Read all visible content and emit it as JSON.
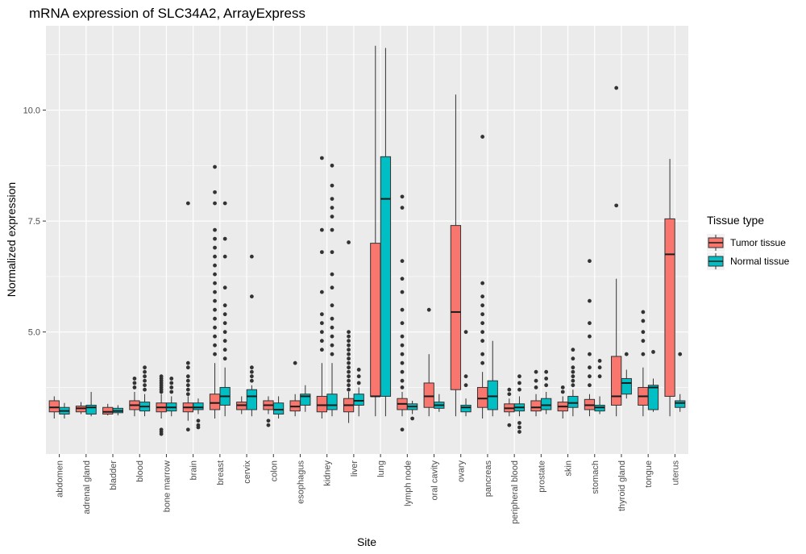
{
  "chart_data": {
    "type": "boxplot",
    "title": "mRNA expression of SLC34A2, ArrayExpress",
    "xlabel": "Site",
    "ylabel": "Normalized expression",
    "ylim": [
      2.25,
      11.9
    ],
    "yticks": [
      5.0,
      7.5,
      10.0
    ],
    "ytick_labels": [
      "5.0",
      "7.5",
      "10.0"
    ],
    "grid": true,
    "legend": {
      "title": "Tissue type",
      "placement": "right",
      "entries": [
        {
          "name": "Tumor tissue",
          "color": "#F8766D"
        },
        {
          "name": "Normal tissue",
          "color": "#00BFC4"
        }
      ]
    },
    "categories": [
      "abdomen",
      "adrenal gland",
      "bladder",
      "blood",
      "bone marrow",
      "brain",
      "breast",
      "cervix",
      "colon",
      "esophagus",
      "kidney",
      "liver",
      "lung",
      "lymph node",
      "oral cavity",
      "ovary",
      "pancreas",
      "peripheral blood",
      "prostate",
      "skin",
      "stomach",
      "thyroid gland",
      "tongue",
      "uterus"
    ],
    "series": [
      {
        "name": "Tumor tissue",
        "color": "#F8766D",
        "boxes": [
          {
            "min": 3.05,
            "q1": 3.2,
            "median": 3.3,
            "q3": 3.45,
            "max": 3.55,
            "outliers": []
          },
          {
            "min": 3.15,
            "q1": 3.2,
            "median": 3.28,
            "q3": 3.33,
            "max": 3.42,
            "outliers": []
          },
          {
            "min": 3.12,
            "q1": 3.15,
            "median": 3.2,
            "q3": 3.3,
            "max": 3.38,
            "outliers": []
          },
          {
            "min": 3.1,
            "q1": 3.25,
            "median": 3.35,
            "q3": 3.45,
            "max": 3.65,
            "outliers": [
              3.75,
              3.85,
              3.95
            ]
          },
          {
            "min": 3.05,
            "q1": 3.2,
            "median": 3.3,
            "q3": 3.4,
            "max": 3.6,
            "outliers": [
              2.7,
              2.75,
              2.8,
              3.65,
              3.7,
              3.75,
              3.8,
              3.85,
              3.9,
              3.95,
              4.0
            ]
          },
          {
            "min": 3.0,
            "q1": 3.2,
            "median": 3.3,
            "q3": 3.4,
            "max": 3.55,
            "outliers": [
              2.8,
              3.6,
              3.7,
              3.8,
              3.9,
              4.0,
              4.2,
              4.3,
              7.9
            ]
          },
          {
            "min": 3.05,
            "q1": 3.25,
            "median": 3.4,
            "q3": 3.6,
            "max": 4.3,
            "outliers": [
              4.5,
              4.7,
              4.9,
              5.1,
              5.3,
              5.5,
              5.7,
              5.9,
              6.1,
              6.3,
              6.5,
              6.7,
              6.9,
              7.1,
              7.3,
              7.9,
              8.15,
              8.72
            ]
          },
          {
            "min": 3.15,
            "q1": 3.25,
            "median": 3.35,
            "q3": 3.42,
            "max": 3.55,
            "outliers": []
          },
          {
            "min": 3.15,
            "q1": 3.25,
            "median": 3.35,
            "q3": 3.45,
            "max": 3.55,
            "outliers": [
              2.9,
              3.0
            ]
          },
          {
            "min": 3.1,
            "q1": 3.22,
            "median": 3.32,
            "q3": 3.45,
            "max": 3.6,
            "outliers": [
              4.3
            ]
          },
          {
            "min": 3.05,
            "q1": 3.2,
            "median": 3.35,
            "q3": 3.55,
            "max": 4.3,
            "outliers": [
              4.6,
              4.8,
              5.0,
              5.2,
              5.4,
              5.9,
              6.8,
              7.3,
              8.92
            ]
          },
          {
            "min": 2.95,
            "q1": 3.2,
            "median": 3.35,
            "q3": 3.5,
            "max": 3.65,
            "outliers": [
              3.7,
              3.8,
              3.9,
              4.0,
              4.1,
              4.2,
              4.3,
              4.4,
              4.5,
              4.6,
              4.7,
              4.8,
              4.9,
              5.0,
              7.02
            ]
          },
          {
            "min": 3.1,
            "q1": 3.55,
            "median": 3.55,
            "q3": 7.0,
            "max": 11.45,
            "outliers": []
          },
          {
            "min": 3.1,
            "q1": 3.25,
            "median": 3.38,
            "q3": 3.5,
            "max": 3.65,
            "outliers": [
              2.8,
              3.75,
              3.9,
              4.1,
              4.3,
              4.5,
              4.7,
              4.9,
              5.2,
              5.5,
              5.9,
              6.2,
              6.6,
              7.8,
              8.05
            ]
          },
          {
            "min": 3.1,
            "q1": 3.3,
            "median": 3.55,
            "q3": 3.85,
            "max": 4.5,
            "outliers": [
              5.5
            ]
          },
          {
            "min": 3.1,
            "q1": 3.7,
            "median": 5.45,
            "q3": 7.4,
            "max": 10.35,
            "outliers": []
          },
          {
            "min": 3.05,
            "q1": 3.3,
            "median": 3.5,
            "q3": 3.75,
            "max": 4.1,
            "outliers": [
              4.3,
              4.5,
              4.8,
              5.0,
              5.2,
              5.4,
              5.6,
              5.8,
              6.1,
              9.4
            ]
          },
          {
            "min": 3.1,
            "q1": 3.2,
            "median": 3.28,
            "q3": 3.38,
            "max": 3.5,
            "outliers": [
              2.9,
              3.6,
              3.7
            ]
          },
          {
            "min": 3.1,
            "q1": 3.22,
            "median": 3.3,
            "q3": 3.45,
            "max": 3.6,
            "outliers": [
              3.75,
              3.9,
              4.1
            ]
          },
          {
            "min": 3.05,
            "q1": 3.22,
            "median": 3.32,
            "q3": 3.42,
            "max": 3.55,
            "outliers": [
              3.65,
              3.75
            ]
          },
          {
            "min": 3.1,
            "q1": 3.25,
            "median": 3.35,
            "q3": 3.48,
            "max": 3.6,
            "outliers": [
              3.8,
              4.0,
              4.2,
              4.5,
              4.9,
              5.2,
              5.7,
              6.6
            ]
          },
          {
            "min": 3.1,
            "q1": 3.35,
            "median": 3.55,
            "q3": 4.45,
            "max": 6.2,
            "outliers": [
              7.85,
              10.5
            ]
          },
          {
            "min": 3.1,
            "q1": 3.35,
            "median": 3.55,
            "q3": 3.75,
            "max": 4.2,
            "outliers": [
              4.5,
              4.8,
              5.0,
              5.25,
              5.45
            ]
          },
          {
            "min": 3.1,
            "q1": 3.55,
            "median": 6.75,
            "q3": 7.55,
            "max": 8.9,
            "outliers": []
          }
        ]
      },
      {
        "name": "Normal tissue",
        "color": "#00BFC4",
        "boxes": [
          {
            "min": 3.05,
            "q1": 3.15,
            "median": 3.22,
            "q3": 3.3,
            "max": 3.4,
            "outliers": []
          },
          {
            "min": 3.1,
            "q1": 3.15,
            "median": 3.3,
            "q3": 3.35,
            "max": 3.65,
            "outliers": []
          },
          {
            "min": 3.12,
            "q1": 3.18,
            "median": 3.22,
            "q3": 3.28,
            "max": 3.35,
            "outliers": []
          },
          {
            "min": 3.1,
            "q1": 3.22,
            "median": 3.32,
            "q3": 3.42,
            "max": 3.6,
            "outliers": [
              3.7,
              3.8,
              3.9,
              4.0,
              4.1,
              4.2
            ]
          },
          {
            "min": 3.1,
            "q1": 3.22,
            "median": 3.3,
            "q3": 3.4,
            "max": 3.55,
            "outliers": [
              3.65,
              3.75,
              3.85,
              3.95
            ]
          },
          {
            "min": 3.15,
            "q1": 3.25,
            "median": 3.3,
            "q3": 3.4,
            "max": 3.5,
            "outliers": [
              2.85,
              2.9,
              3.0
            ]
          },
          {
            "min": 3.1,
            "q1": 3.35,
            "median": 3.55,
            "q3": 3.75,
            "max": 4.2,
            "outliers": [
              4.4,
              4.6,
              4.8,
              5.0,
              5.2,
              5.4,
              5.6,
              6.0,
              6.7,
              7.1,
              7.9
            ]
          },
          {
            "min": 3.1,
            "q1": 3.25,
            "median": 3.55,
            "q3": 3.7,
            "max": 3.8,
            "outliers": [
              3.9,
              4.0,
              4.1,
              4.2,
              5.8,
              6.7
            ]
          },
          {
            "min": 3.05,
            "q1": 3.15,
            "median": 3.25,
            "q3": 3.4,
            "max": 3.55,
            "outliers": []
          },
          {
            "min": 3.2,
            "q1": 3.35,
            "median": 3.55,
            "q3": 3.6,
            "max": 3.8,
            "outliers": []
          },
          {
            "min": 3.1,
            "q1": 3.25,
            "median": 3.35,
            "q3": 3.6,
            "max": 4.3,
            "outliers": [
              4.5,
              4.7,
              4.9,
              5.1,
              5.3,
              5.6,
              6.0,
              6.3,
              6.8,
              7.3,
              7.6,
              7.8,
              8.0,
              8.3,
              8.75
            ]
          },
          {
            "min": 3.1,
            "q1": 3.35,
            "median": 3.45,
            "q3": 3.6,
            "max": 3.75,
            "outliers": [
              3.85,
              4.0,
              4.15
            ]
          },
          {
            "min": 3.1,
            "q1": 3.55,
            "median": 8.0,
            "q3": 8.95,
            "max": 11.4,
            "outliers": []
          },
          {
            "min": 3.15,
            "q1": 3.25,
            "median": 3.32,
            "q3": 3.38,
            "max": 3.45,
            "outliers": [
              3.05
            ]
          },
          {
            "min": 3.2,
            "q1": 3.28,
            "median": 3.35,
            "q3": 3.42,
            "max": 3.6,
            "outliers": []
          },
          {
            "min": 3.1,
            "q1": 3.2,
            "median": 3.3,
            "q3": 3.35,
            "max": 3.5,
            "outliers": [
              3.8,
              4.0,
              5.0
            ]
          },
          {
            "min": 3.1,
            "q1": 3.25,
            "median": 3.55,
            "q3": 3.9,
            "max": 4.8,
            "outliers": []
          },
          {
            "min": 3.1,
            "q1": 3.22,
            "median": 3.3,
            "q3": 3.38,
            "max": 3.55,
            "outliers": [
              2.75,
              2.85,
              2.95,
              3.7,
              3.85,
              4.0
            ]
          },
          {
            "min": 3.15,
            "q1": 3.25,
            "median": 3.35,
            "q3": 3.5,
            "max": 3.65,
            "outliers": [
              3.8,
              3.95,
              4.1
            ]
          },
          {
            "min": 3.1,
            "q1": 3.3,
            "median": 3.4,
            "q3": 3.55,
            "max": 3.7,
            "outliers": [
              3.8,
              3.9,
              4.0,
              4.1,
              4.2,
              4.4,
              4.6
            ]
          },
          {
            "min": 3.15,
            "q1": 3.22,
            "median": 3.3,
            "q3": 3.35,
            "max": 3.55,
            "outliers": [
              4.0,
              4.2,
              4.35
            ]
          },
          {
            "min": 3.5,
            "q1": 3.6,
            "median": 3.85,
            "q3": 3.95,
            "max": 4.15,
            "outliers": [
              4.5
            ]
          },
          {
            "min": 3.2,
            "q1": 3.25,
            "median": 3.75,
            "q3": 3.8,
            "max": 3.95,
            "outliers": [
              4.55
            ]
          },
          {
            "min": 3.2,
            "q1": 3.3,
            "median": 3.4,
            "q3": 3.45,
            "max": 3.6,
            "outliers": [
              4.5
            ]
          }
        ]
      }
    ]
  }
}
